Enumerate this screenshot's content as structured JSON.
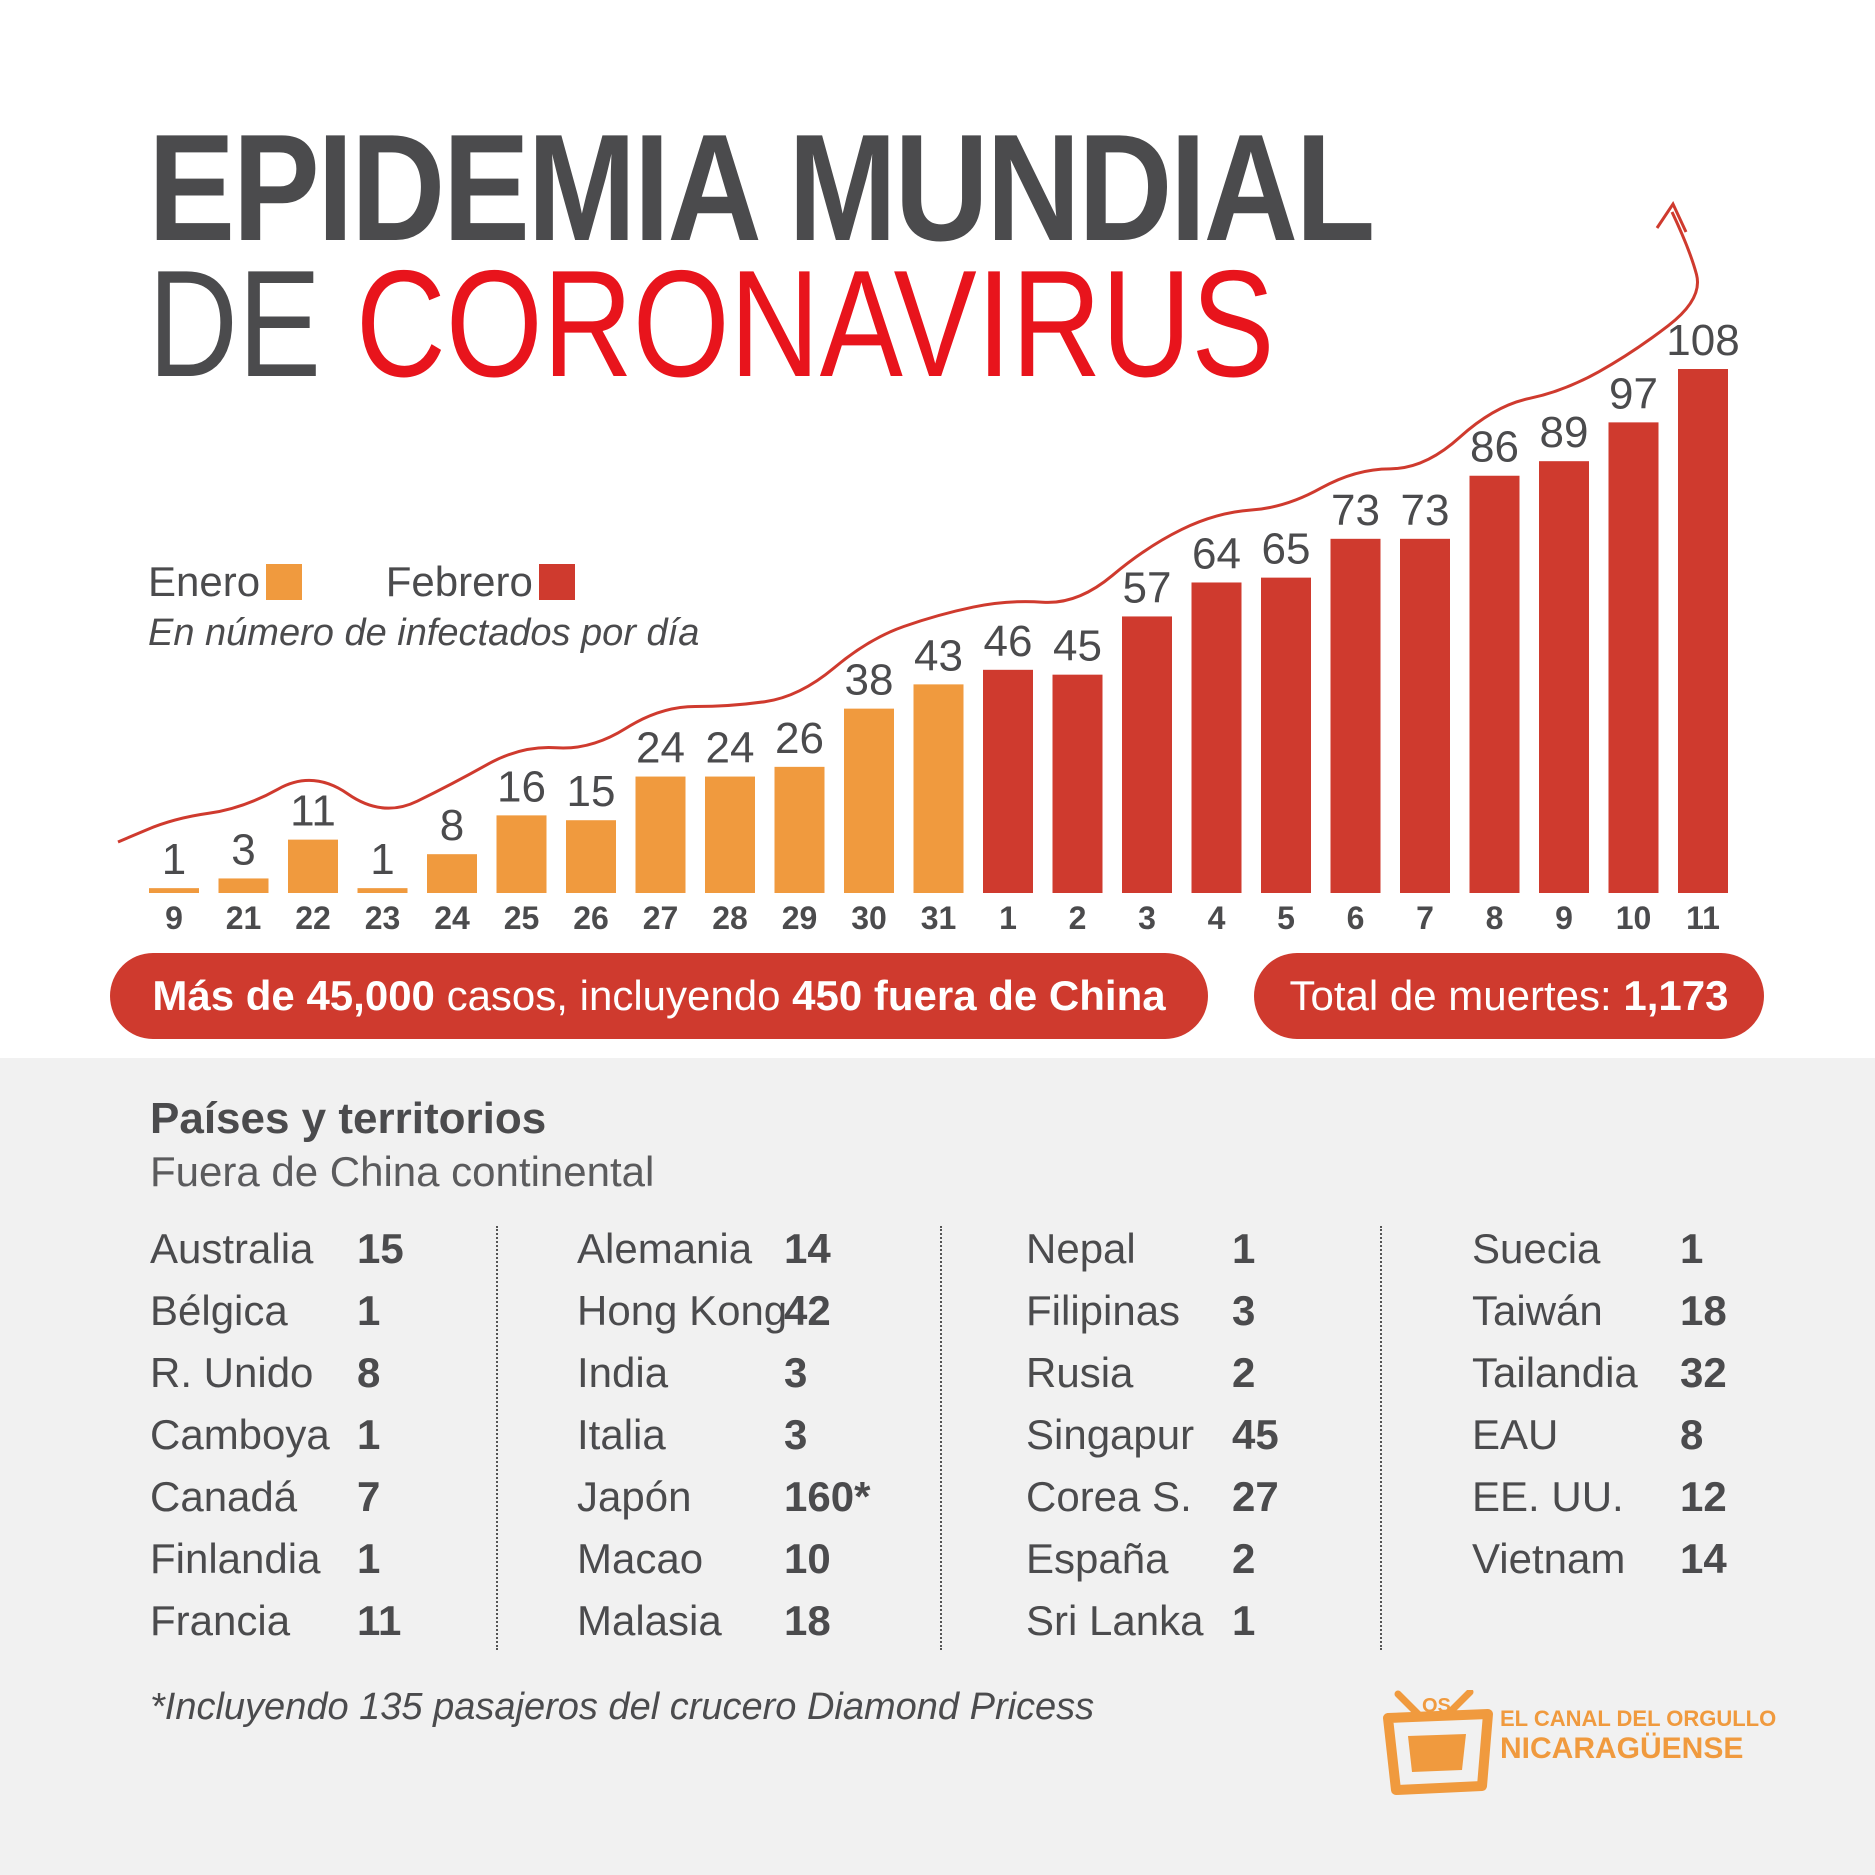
{
  "header": {
    "title_line1": "EPIDEMIA MUNDIAL",
    "title_de": "DE",
    "title_coronavirus": "CORONAVIRUS"
  },
  "legend": {
    "enero": "Enero",
    "febrero": "Febrero",
    "subtitle": "En número de infectados por día"
  },
  "colors": {
    "enero": "#f09a3e",
    "febrero": "#cf3a2e",
    "trend": "#cf3a2e",
    "title_gray": "#4b4b4d",
    "title_red": "#e8141c"
  },
  "chart_data": {
    "type": "bar",
    "categories": [
      "9",
      "21",
      "22",
      "23",
      "24",
      "25",
      "26",
      "27",
      "28",
      "29",
      "30",
      "31",
      "1",
      "2",
      "3",
      "4",
      "5",
      "6",
      "7",
      "8",
      "9",
      "10",
      "11"
    ],
    "values": [
      1,
      3,
      11,
      1,
      8,
      16,
      15,
      24,
      24,
      26,
      38,
      43,
      46,
      45,
      57,
      64,
      65,
      73,
      73,
      86,
      89,
      97,
      108
    ],
    "months": [
      "Enero",
      "Enero",
      "Enero",
      "Enero",
      "Enero",
      "Enero",
      "Enero",
      "Enero",
      "Enero",
      "Enero",
      "Enero",
      "Enero",
      "Febrero",
      "Febrero",
      "Febrero",
      "Febrero",
      "Febrero",
      "Febrero",
      "Febrero",
      "Febrero",
      "Febrero",
      "Febrero",
      "Febrero"
    ],
    "title": "",
    "xlabel": "",
    "ylabel": "",
    "ylim": [
      0,
      120
    ],
    "grid": false,
    "legend_position": "left",
    "trend_arrow": true
  },
  "summary": {
    "cases_bold": "Más de 45,000",
    "cases_mid": " casos, incluyendo ",
    "cases_bold2": "450 fuera de China",
    "deaths_label": "Total de muertes: ",
    "deaths_value": "1,173"
  },
  "countries": {
    "title": "Países y territorios",
    "subtitle": "Fuera de China continental",
    "columns": [
      [
        {
          "name": "Australia",
          "value": "15"
        },
        {
          "name": "Bélgica",
          "value": "1"
        },
        {
          "name": "R. Unido",
          "value": "8"
        },
        {
          "name": "Camboya",
          "value": "1"
        },
        {
          "name": "Canadá",
          "value": "7"
        },
        {
          "name": "Finlandia",
          "value": "1"
        },
        {
          "name": "Francia",
          "value": "11"
        }
      ],
      [
        {
          "name": "Alemania",
          "value": "14"
        },
        {
          "name": "Hong Kong",
          "value": "42"
        },
        {
          "name": "India",
          "value": "3"
        },
        {
          "name": "Italia",
          "value": "3"
        },
        {
          "name": "Japón",
          "value": "160*"
        },
        {
          "name": "Macao",
          "value": "10"
        },
        {
          "name": "Malasia",
          "value": "18"
        }
      ],
      [
        {
          "name": "Nepal",
          "value": "1"
        },
        {
          "name": "Filipinas",
          "value": "3"
        },
        {
          "name": "Rusia",
          "value": "2"
        },
        {
          "name": "Singapur",
          "value": "45"
        },
        {
          "name": "Corea S.",
          "value": "27"
        },
        {
          "name": "España",
          "value": "2"
        },
        {
          "name": "Sri Lanka",
          "value": "1"
        }
      ],
      [
        {
          "name": "Suecia",
          "value": "1"
        },
        {
          "name": "Taiwán",
          "value": "18"
        },
        {
          "name": "Tailandia",
          "value": "32"
        },
        {
          "name": "EAU",
          "value": "8"
        },
        {
          "name": "EE. UU.",
          "value": "12"
        },
        {
          "name": "Vietnam",
          "value": "14"
        }
      ]
    ]
  },
  "footnote": "*Incluyendo 135 pasajeros del crucero Diamond Pricess",
  "logo": {
    "line1": "EL CANAL DEL ORGULLO",
    "line2": "NICARAGÜENSE",
    "brand": "VOS TV",
    "icon": "tv-icon"
  }
}
